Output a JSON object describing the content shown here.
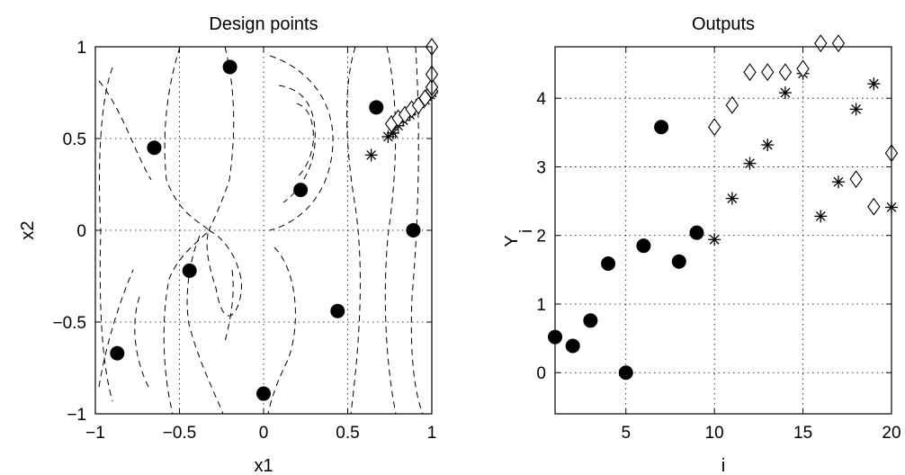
{
  "chart_data": [
    {
      "type": "scatter",
      "title": "Design points",
      "xlabel": "x1",
      "ylabel": "x2",
      "xlim": [
        -1,
        1
      ],
      "ylim": [
        -1,
        1
      ],
      "xticks": [
        -1,
        -0.5,
        0,
        0.5,
        1
      ],
      "xtick_labels": [
        "−1",
        "−0.5",
        "0",
        "0.5",
        "1"
      ],
      "yticks": [
        -1,
        -0.5,
        0,
        0.5,
        1
      ],
      "ytick_labels": [
        "−1",
        "−0.5",
        "0",
        "0.5",
        "1"
      ],
      "grid": true,
      "has_contours": true,
      "contour_style": "dashed",
      "series": [
        {
          "marker": "filled-circle",
          "points": [
            [
              -0.2,
              0.89
            ],
            [
              -0.65,
              0.45
            ],
            [
              -0.87,
              -0.67
            ],
            [
              -0.44,
              -0.22
            ],
            [
              0.0,
              -0.89
            ],
            [
              0.22,
              0.22
            ],
            [
              0.44,
              -0.44
            ],
            [
              0.67,
              0.67
            ],
            [
              0.89,
              0.0
            ]
          ]
        },
        {
          "marker": "asterisk",
          "points": [
            [
              0.64,
              0.41
            ],
            [
              0.74,
              0.51
            ],
            [
              0.77,
              0.53
            ],
            [
              0.8,
              0.57
            ],
            [
              0.83,
              0.6
            ],
            [
              0.87,
              0.63
            ],
            [
              0.9,
              0.66
            ],
            [
              0.93,
              0.69
            ],
            [
              0.96,
              0.71
            ],
            [
              0.99,
              0.74
            ],
            [
              1.0,
              0.75
            ]
          ]
        },
        {
          "marker": "diamond",
          "points": [
            [
              0.76,
              0.58
            ],
            [
              0.8,
              0.61
            ],
            [
              0.84,
              0.63
            ],
            [
              0.88,
              0.66
            ],
            [
              0.92,
              0.68
            ],
            [
              0.96,
              0.72
            ],
            [
              1.0,
              0.76
            ],
            [
              1.0,
              0.78
            ],
            [
              1.0,
              0.85
            ],
            [
              1.0,
              1.0
            ]
          ]
        }
      ]
    },
    {
      "type": "scatter",
      "title": "Outputs",
      "xlabel": "i",
      "ylabel": "Y",
      "ylabel_subscript": "i",
      "xlim": [
        1,
        20
      ],
      "ylim": [
        -0.6,
        4.75
      ],
      "xticks": [
        5,
        10,
        15,
        20
      ],
      "xtick_labels": [
        "5",
        "10",
        "15",
        "20"
      ],
      "yticks": [
        0,
        1,
        2,
        3,
        4
      ],
      "ytick_labels": [
        "0",
        "1",
        "2",
        "3",
        "4"
      ],
      "grid": true,
      "series": [
        {
          "marker": "filled-circle",
          "points": [
            [
              1,
              0.52
            ],
            [
              2,
              0.39
            ],
            [
              3,
              0.76
            ],
            [
              4,
              1.59
            ],
            [
              5,
              0.0
            ],
            [
              6,
              1.85
            ],
            [
              7,
              3.58
            ],
            [
              8,
              1.62
            ],
            [
              9,
              2.04
            ]
          ]
        },
        {
          "marker": "asterisk",
          "points": [
            [
              10,
              1.94
            ],
            [
              11,
              2.54
            ],
            [
              12,
              3.05
            ],
            [
              13,
              3.32
            ],
            [
              14,
              4.08
            ],
            [
              15,
              4.36
            ],
            [
              16,
              2.28
            ],
            [
              17,
              2.78
            ],
            [
              18,
              3.84
            ],
            [
              19,
              4.21
            ],
            [
              20,
              2.41
            ]
          ]
        },
        {
          "marker": "diamond",
          "points": [
            [
              10,
              3.58
            ],
            [
              11,
              3.9
            ],
            [
              12,
              4.38
            ],
            [
              13,
              4.38
            ],
            [
              14,
              4.38
            ],
            [
              15,
              4.43
            ],
            [
              16,
              4.8
            ],
            [
              17,
              4.8
            ],
            [
              18,
              2.82
            ],
            [
              19,
              2.42
            ],
            [
              20,
              3.2
            ]
          ]
        }
      ]
    }
  ]
}
